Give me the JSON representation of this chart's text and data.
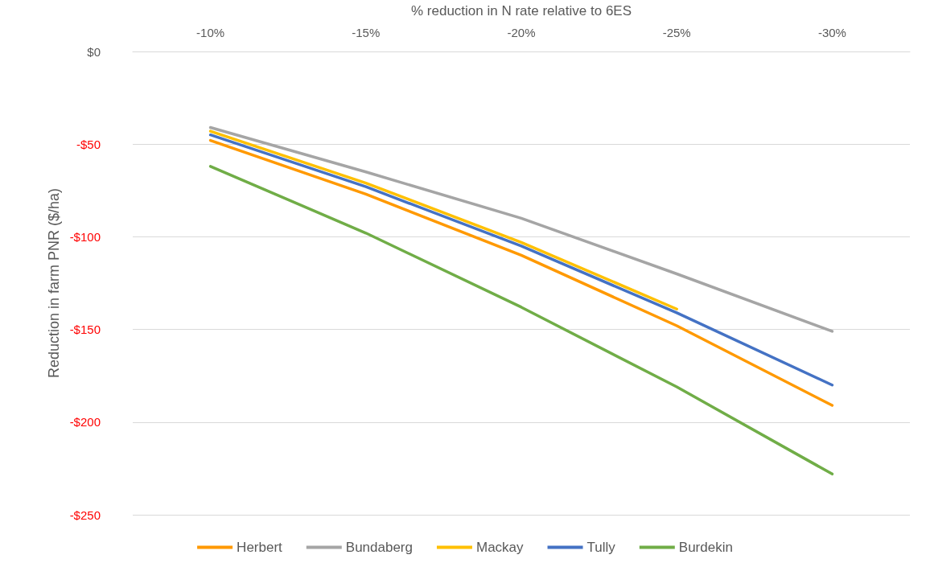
{
  "chart_data": {
    "type": "line",
    "xlabel": "% reduction in N rate relative to 6ES",
    "ylabel": "Reduction in farm PNR ($/ha)",
    "categories": [
      "-10%",
      "-15%",
      "-20%",
      "-25%",
      "-30%"
    ],
    "series": [
      {
        "name": "Herbert",
        "color": "#ff9900",
        "values": [
          -48,
          -77,
          -110,
          -148,
          -191
        ]
      },
      {
        "name": "Bundaberg",
        "color": "#a5a5a5",
        "values": [
          -41,
          -65,
          -90,
          -120,
          -151
        ]
      },
      {
        "name": "Mackay",
        "color": "#ffc000",
        "values": [
          -43,
          -71,
          -103,
          -139,
          null
        ]
      },
      {
        "name": "Tully",
        "color": "#4472c4",
        "values": [
          -45,
          -73,
          -105,
          -141,
          -180
        ]
      },
      {
        "name": "Burdekin",
        "color": "#70ad47",
        "values": [
          -62,
          -98,
          -138,
          -181,
          -228
        ]
      }
    ],
    "ylim": [
      -250,
      0
    ],
    "yticks": [
      {
        "value": 0,
        "label": "$0"
      },
      {
        "value": -50,
        "label": "-$50"
      },
      {
        "value": -100,
        "label": "-$100"
      },
      {
        "value": -150,
        "label": "-$150"
      },
      {
        "value": -200,
        "label": "-$200"
      },
      {
        "value": -250,
        "label": "-$250"
      }
    ],
    "grid": "y",
    "legend": "bottom",
    "marker": "none",
    "line_style": "solid"
  }
}
